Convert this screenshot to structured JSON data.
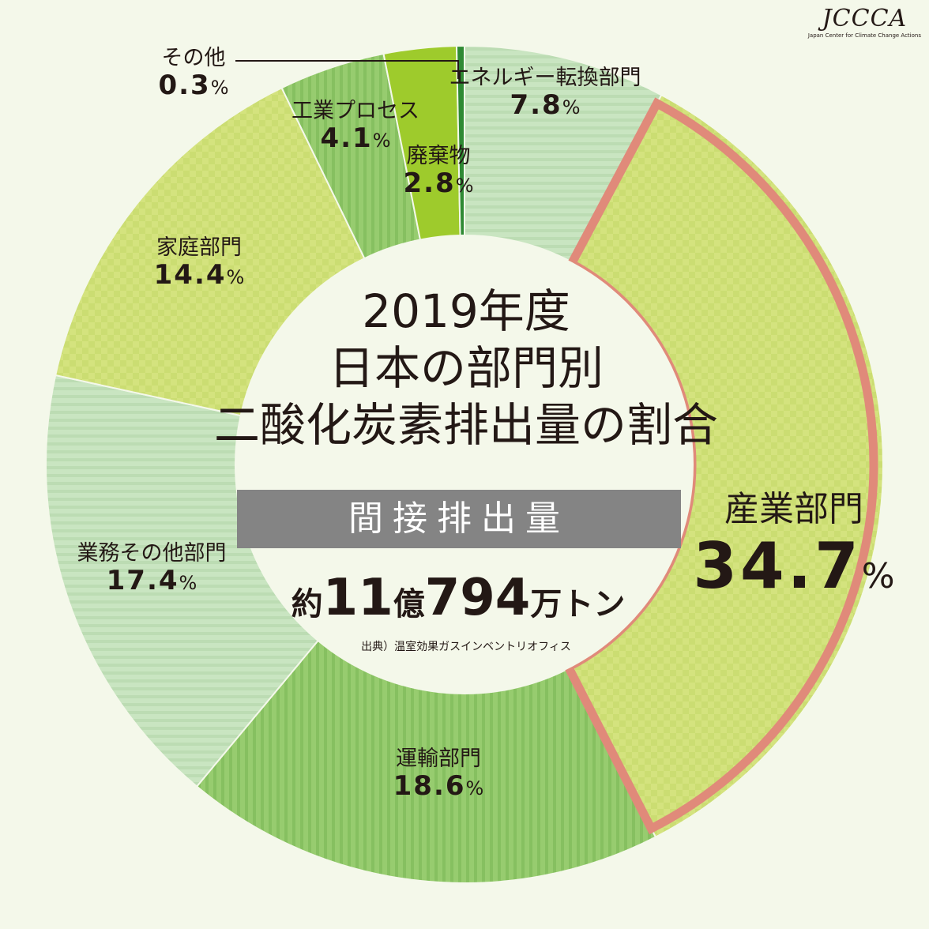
{
  "chart_data": {
    "type": "pie",
    "title": "2019年度\n日本の部門別\n二酸化炭素排出量の割合",
    "subtitle": "間接排出量",
    "total_label": {
      "prefix": "約",
      "num1": "11",
      "mid": "億",
      "num2": "794",
      "suffix": "万トン"
    },
    "source": "出典）温室効果ガスインベントリオフィス",
    "slices": [
      {
        "label": "産業部門",
        "value": 34.7,
        "value_text": "34.7",
        "color": "#d4e37e",
        "highlight": true
      },
      {
        "label": "運輸部門",
        "value": 18.6,
        "value_text": "18.6",
        "color": "#97cc6f"
      },
      {
        "label": "業務その他部門",
        "value": 17.4,
        "value_text": "17.4",
        "color": "#c5e3bd"
      },
      {
        "label": "家庭部門",
        "value": 14.4,
        "value_text": "14.4",
        "color": "#d4e37e"
      },
      {
        "label": "工業プロセス",
        "value": 4.1,
        "value_text": "4.1",
        "color": "#8ac66d"
      },
      {
        "label": "廃棄物",
        "value": 2.8,
        "value_text": "2.8",
        "color": "#9ecb2c"
      },
      {
        "label": "その他",
        "value": 0.3,
        "value_text": "0.3",
        "color": "#2f8a34"
      },
      {
        "label": "エネルギー転換部門",
        "value": 7.8,
        "value_text": "7.8",
        "color": "#c5e3bd"
      }
    ],
    "percent_sign": "%",
    "highlight_color": "#e08a7a"
  },
  "logo": {
    "mark": "JCCCA",
    "subtitle": "Japan Center for Climate Change Actions"
  }
}
